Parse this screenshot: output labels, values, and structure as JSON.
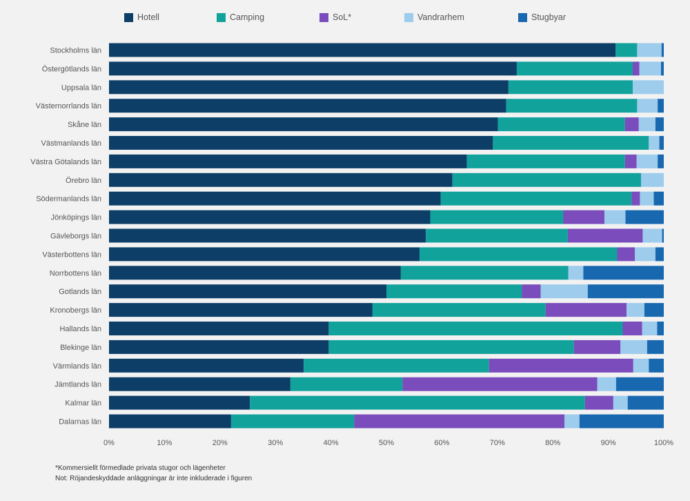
{
  "chart_data": {
    "type": "bar",
    "orientation": "horizontal",
    "stacked": "percent",
    "categories": [
      "Stockholms län",
      "Östergötlands län",
      "Uppsala län",
      "Västernorrlands län",
      "Skåne län",
      "Västmanlands län",
      "Västra Götalands län",
      "Örebro län",
      "Södermanlands län",
      "Jönköpings län",
      "Gävleborgs län",
      "Västerbottens län",
      "Norrbottens län",
      "Gotlands län",
      "Kronobergs län",
      "Hallands län",
      "Blekinge län",
      "Värmlands län",
      "Jämtlands län",
      "Kalmar län",
      "Dalarnas län"
    ],
    "series": [
      {
        "name": "Hotell",
        "color": "#0d3e68",
        "values": [
          91.3,
          73.5,
          72.0,
          71.6,
          70.1,
          69.2,
          64.5,
          61.9,
          59.8,
          57.9,
          57.1,
          56.0,
          52.6,
          50.0,
          47.5,
          39.6,
          39.6,
          35.1,
          32.7,
          25.4,
          22.0
        ]
      },
      {
        "name": "Camping",
        "color": "#12a29c",
        "values": [
          3.9,
          20.9,
          22.4,
          23.6,
          22.9,
          28.1,
          28.5,
          34.0,
          34.4,
          24.0,
          25.6,
          35.6,
          30.2,
          24.4,
          31.2,
          53.0,
          44.2,
          33.4,
          20.2,
          60.4,
          22.2
        ]
      },
      {
        "name": "SoL*",
        "color": "#7a4cbc",
        "values": [
          0.0,
          1.2,
          0.0,
          0.0,
          2.5,
          0.0,
          2.1,
          0.0,
          1.5,
          7.4,
          13.5,
          3.2,
          0.0,
          3.4,
          14.6,
          3.5,
          8.4,
          26.0,
          35.1,
          5.1,
          37.9
        ]
      },
      {
        "name": "Vandrarhem",
        "color": "#9dccec",
        "values": [
          4.4,
          3.9,
          5.6,
          3.7,
          3.0,
          1.9,
          3.8,
          4.1,
          2.5,
          3.8,
          3.5,
          3.7,
          2.7,
          8.5,
          3.2,
          2.7,
          4.8,
          2.8,
          3.4,
          2.6,
          2.7
        ]
      },
      {
        "name": "Stugbyar",
        "color": "#1868b0",
        "values": [
          0.4,
          0.5,
          0.0,
          1.1,
          1.5,
          0.8,
          1.1,
          0.0,
          1.8,
          6.9,
          0.3,
          1.5,
          14.5,
          13.7,
          3.5,
          1.2,
          3.0,
          2.7,
          8.6,
          6.5,
          15.2
        ]
      }
    ],
    "xlim": [
      0,
      100
    ],
    "xticks": [
      "0%",
      "10%",
      "20%",
      "30%",
      "40%",
      "50%",
      "60%",
      "70%",
      "80%",
      "90%",
      "100%"
    ],
    "legend_position": "top",
    "grid": false
  },
  "footnotes": {
    "line1": "*Kommersiellt förmedlade privata stugor och lägenheter",
    "line2": "Not: Röjandeskyddade anläggningar är inte inkluderade i figuren"
  }
}
